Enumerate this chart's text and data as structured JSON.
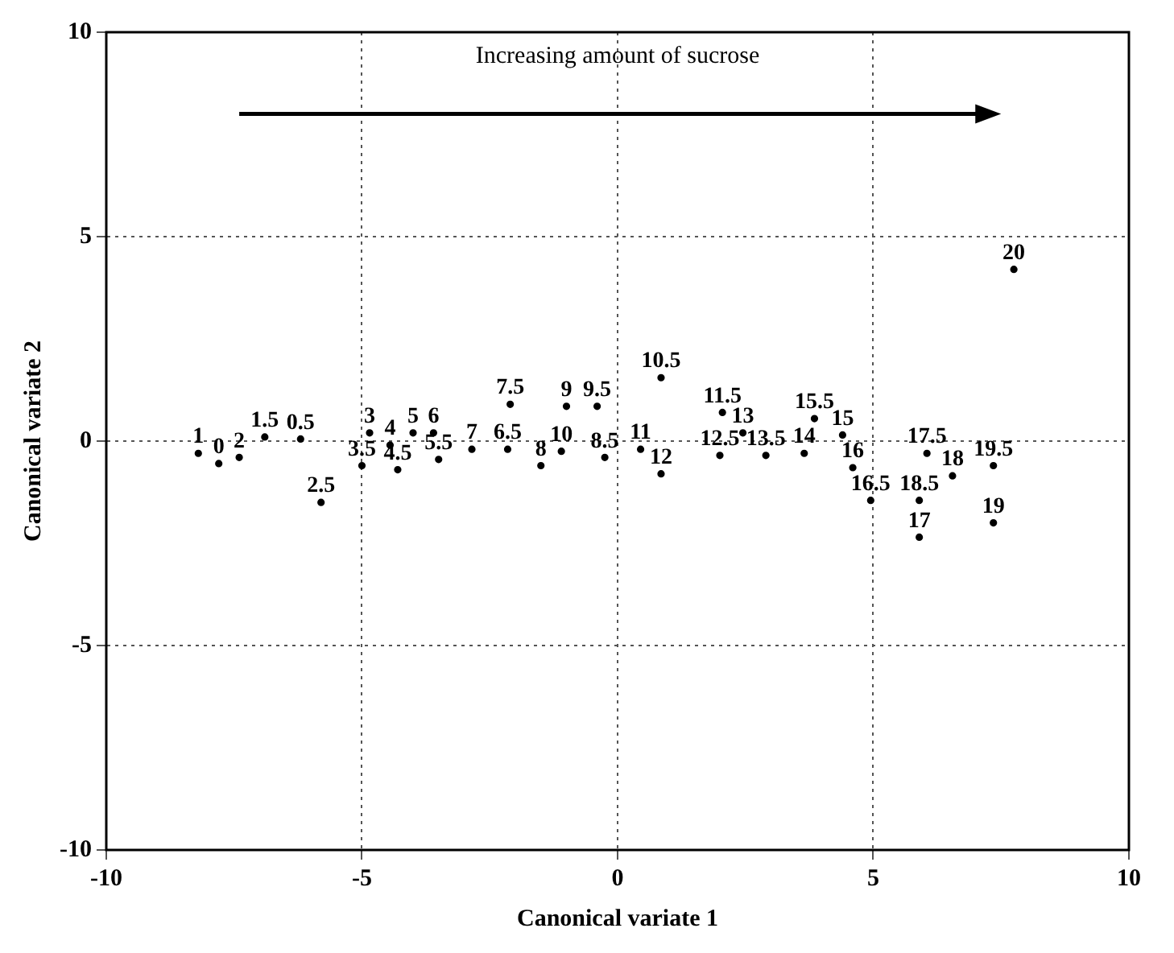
{
  "chart_data": {
    "type": "scatter",
    "xlabel": "Canonical variate 1",
    "ylabel": "Canonical variate 2",
    "annotations": [
      "Increasing amount of sucrose"
    ],
    "xlim": [
      -10,
      10
    ],
    "ylim": [
      -10,
      10
    ],
    "xticks": [
      -10,
      -5,
      0,
      5,
      10
    ],
    "yticks": [
      -10,
      -5,
      0,
      5,
      10
    ],
    "grid": true,
    "legend": false,
    "marker": "circle",
    "color": "#000000",
    "series": [
      {
        "name": "1",
        "x": [
          -8.2
        ],
        "values": [
          -0.3
        ]
      },
      {
        "name": "0",
        "x": [
          -7.8
        ],
        "values": [
          -0.55
        ]
      },
      {
        "name": "2",
        "x": [
          -7.4
        ],
        "values": [
          -0.4
        ]
      },
      {
        "name": "1.5",
        "x": [
          -6.9
        ],
        "values": [
          0.1
        ]
      },
      {
        "name": "0.5",
        "x": [
          -6.2
        ],
        "values": [
          0.05
        ]
      },
      {
        "name": "2.5",
        "x": [
          -5.8
        ],
        "values": [
          -1.5
        ]
      },
      {
        "name": "3",
        "x": [
          -4.85
        ],
        "values": [
          0.2
        ]
      },
      {
        "name": "4",
        "x": [
          -4.45
        ],
        "values": [
          -0.1
        ]
      },
      {
        "name": "3.5",
        "x": [
          -5.0
        ],
        "values": [
          -0.6
        ]
      },
      {
        "name": "4.5",
        "x": [
          -4.3
        ],
        "values": [
          -0.7
        ]
      },
      {
        "name": "5",
        "x": [
          -4.0
        ],
        "values": [
          0.2
        ]
      },
      {
        "name": "6",
        "x": [
          -3.6
        ],
        "values": [
          0.2
        ]
      },
      {
        "name": "5.5",
        "x": [
          -3.5
        ],
        "values": [
          -0.45
        ]
      },
      {
        "name": "7",
        "x": [
          -2.85
        ],
        "values": [
          -0.2
        ]
      },
      {
        "name": "6.5",
        "x": [
          -2.15
        ],
        "values": [
          -0.2
        ]
      },
      {
        "name": "7.5",
        "x": [
          -2.1
        ],
        "values": [
          0.9
        ]
      },
      {
        "name": "8",
        "x": [
          -1.5
        ],
        "values": [
          -0.6
        ]
      },
      {
        "name": "10",
        "x": [
          -1.1
        ],
        "values": [
          -0.25
        ]
      },
      {
        "name": "8.5",
        "x": [
          -0.25
        ],
        "values": [
          -0.4
        ]
      },
      {
        "name": "9",
        "x": [
          -1.0
        ],
        "values": [
          0.85
        ]
      },
      {
        "name": "9.5",
        "x": [
          -0.4
        ],
        "values": [
          0.85
        ]
      },
      {
        "name": "11",
        "x": [
          0.45
        ],
        "values": [
          -0.2
        ]
      },
      {
        "name": "10.5",
        "x": [
          0.85
        ],
        "values": [
          1.55
        ]
      },
      {
        "name": "12",
        "x": [
          0.85
        ],
        "values": [
          -0.8
        ]
      },
      {
        "name": "11.5",
        "x": [
          2.05
        ],
        "values": [
          0.7
        ]
      },
      {
        "name": "13",
        "x": [
          2.45
        ],
        "values": [
          0.2
        ]
      },
      {
        "name": "12.5",
        "x": [
          2.0
        ],
        "values": [
          -0.35
        ]
      },
      {
        "name": "13.5",
        "x": [
          2.9
        ],
        "values": [
          -0.35
        ]
      },
      {
        "name": "14",
        "x": [
          3.65
        ],
        "values": [
          -0.3
        ]
      },
      {
        "name": "15.5",
        "x": [
          3.85
        ],
        "values": [
          0.55
        ]
      },
      {
        "name": "15",
        "x": [
          4.4
        ],
        "values": [
          0.15
        ]
      },
      {
        "name": "16",
        "x": [
          4.6
        ],
        "values": [
          -0.65
        ]
      },
      {
        "name": "16.5",
        "x": [
          4.95
        ],
        "values": [
          -1.45
        ]
      },
      {
        "name": "18.5",
        "x": [
          5.9
        ],
        "values": [
          -1.45
        ]
      },
      {
        "name": "17",
        "x": [
          5.9
        ],
        "values": [
          -2.35
        ]
      },
      {
        "name": "17.5",
        "x": [
          6.05
        ],
        "values": [
          -0.3
        ]
      },
      {
        "name": "18",
        "x": [
          6.55
        ],
        "values": [
          -0.85
        ]
      },
      {
        "name": "19.5",
        "x": [
          7.35
        ],
        "values": [
          -0.6
        ]
      },
      {
        "name": "19",
        "x": [
          7.35
        ],
        "values": [
          -2.0
        ]
      },
      {
        "name": "20",
        "x": [
          7.75
        ],
        "values": [
          4.2
        ]
      }
    ]
  }
}
